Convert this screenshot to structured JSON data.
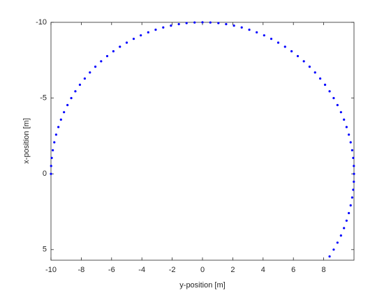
{
  "chart_data": {
    "type": "scatter",
    "x_label": "y-position [m]",
    "y_label": "x-position [m]",
    "color": "#0000ff",
    "y_reverse": true,
    "xlim": [
      -10,
      10
    ],
    "ylim": [
      -10,
      5.7
    ],
    "xticks": [
      -10,
      -8,
      -6,
      -4,
      -2,
      0,
      2,
      4,
      6,
      8
    ],
    "yticks": [
      -10,
      -5,
      0,
      5
    ],
    "x": [
      8.39,
      8.66,
      8.91,
      9.14,
      9.34,
      9.51,
      9.66,
      9.78,
      9.88,
      9.95,
      9.99,
      10,
      9.99,
      9.95,
      9.88,
      9.78,
      9.66,
      9.51,
      9.34,
      9.14,
      8.91,
      8.66,
      8.39,
      8.09,
      7.77,
      7.43,
      7.07,
      6.69,
      6.29,
      5.88,
      5.45,
      5,
      4.54,
      4.07,
      3.58,
      3.09,
      2.59,
      2.08,
      1.56,
      1.05,
      0.52,
      0,
      -0.52,
      -1.05,
      -1.56,
      -2.08,
      -2.59,
      -3.09,
      -3.58,
      -4.07,
      -4.54,
      -5,
      -5.45,
      -5.88,
      -6.29,
      -6.69,
      -7.07,
      -7.43,
      -7.77,
      -8.09,
      -8.39,
      -8.66,
      -8.91,
      -9.14,
      -9.34,
      -9.51,
      -9.66,
      -9.78,
      -9.88,
      -9.95,
      -9.99,
      -10
    ],
    "values": [
      5.45,
      5,
      4.54,
      4.07,
      3.58,
      3.09,
      2.59,
      2.08,
      1.56,
      1.05,
      0.52,
      0,
      -0.52,
      -1.05,
      -1.56,
      -2.08,
      -2.59,
      -3.09,
      -3.58,
      -4.07,
      -4.54,
      -5,
      -5.45,
      -5.88,
      -6.29,
      -6.69,
      -7.07,
      -7.43,
      -7.77,
      -8.09,
      -8.39,
      -8.66,
      -8.91,
      -9.14,
      -9.34,
      -9.51,
      -9.66,
      -9.78,
      -9.88,
      -9.95,
      -9.99,
      -10,
      -9.99,
      -9.95,
      -9.88,
      -9.78,
      -9.66,
      -9.51,
      -9.34,
      -9.14,
      -8.91,
      -8.66,
      -8.39,
      -8.09,
      -7.77,
      -7.43,
      -7.07,
      -6.69,
      -6.29,
      -5.88,
      -5.45,
      -5,
      -4.54,
      -4.07,
      -3.58,
      -3.09,
      -2.59,
      -2.08,
      -1.56,
      -1.05,
      -0.52,
      0
    ]
  }
}
